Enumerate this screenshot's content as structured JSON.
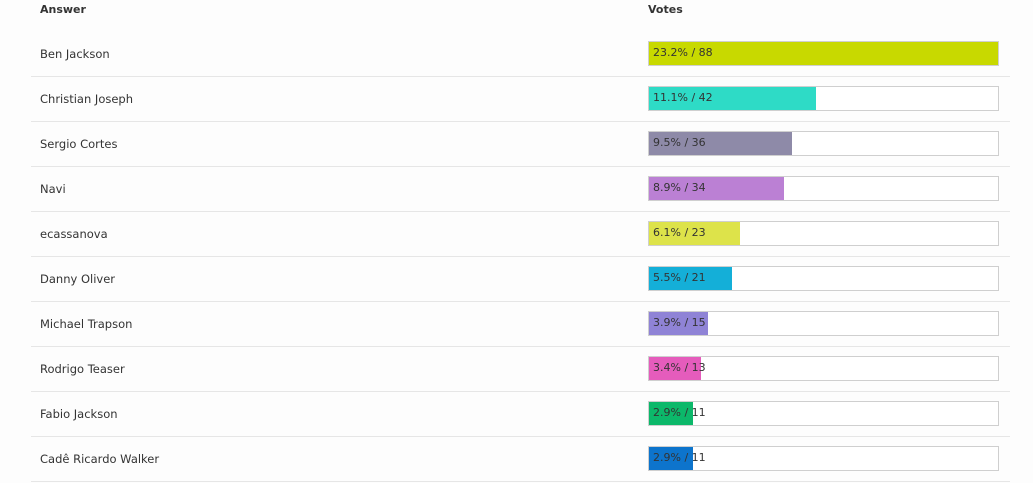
{
  "table": {
    "header": {
      "answer": "Answer",
      "votes": "Votes"
    },
    "max_votes": 88,
    "rows": [
      {
        "answer": "Ben Jackson",
        "percent_label": "23.2%",
        "votes": 88,
        "label": "23.2% / 88",
        "color": "#c8d900"
      },
      {
        "answer": "Christian Joseph",
        "percent_label": "11.1%",
        "votes": 42,
        "label": "11.1% / 42",
        "color": "#2edbc6"
      },
      {
        "answer": "Sergio Cortes",
        "percent_label": "9.5%",
        "votes": 36,
        "label": "9.5% / 36",
        "color": "#8e8aa8"
      },
      {
        "answer": "Navi",
        "percent_label": "8.9%",
        "votes": 34,
        "label": "8.9% / 34",
        "color": "#bb80d4"
      },
      {
        "answer": "ecassanova",
        "percent_label": "6.1%",
        "votes": 23,
        "label": "6.1% / 23",
        "color": "#dde34a"
      },
      {
        "answer": "Danny Oliver",
        "percent_label": "5.5%",
        "votes": 21,
        "label": "5.5% / 21",
        "color": "#14afd8"
      },
      {
        "answer": "Michael Trapson",
        "percent_label": "3.9%",
        "votes": 15,
        "label": "3.9% / 15",
        "color": "#8f83d6"
      },
      {
        "answer": "Rodrigo Teaser",
        "percent_label": "3.4%",
        "votes": 13,
        "label": "3.4% / 13",
        "color": "#e55cbc"
      },
      {
        "answer": "Fabio Jackson",
        "percent_label": "2.9%",
        "votes": 11,
        "label": "2.9% / 11",
        "color": "#0cb86a"
      },
      {
        "answer": "Cadê Ricardo Walker",
        "percent_label": "2.9%",
        "votes": 11,
        "label": "2.9% / 11",
        "color": "#0d74cc"
      }
    ]
  }
}
